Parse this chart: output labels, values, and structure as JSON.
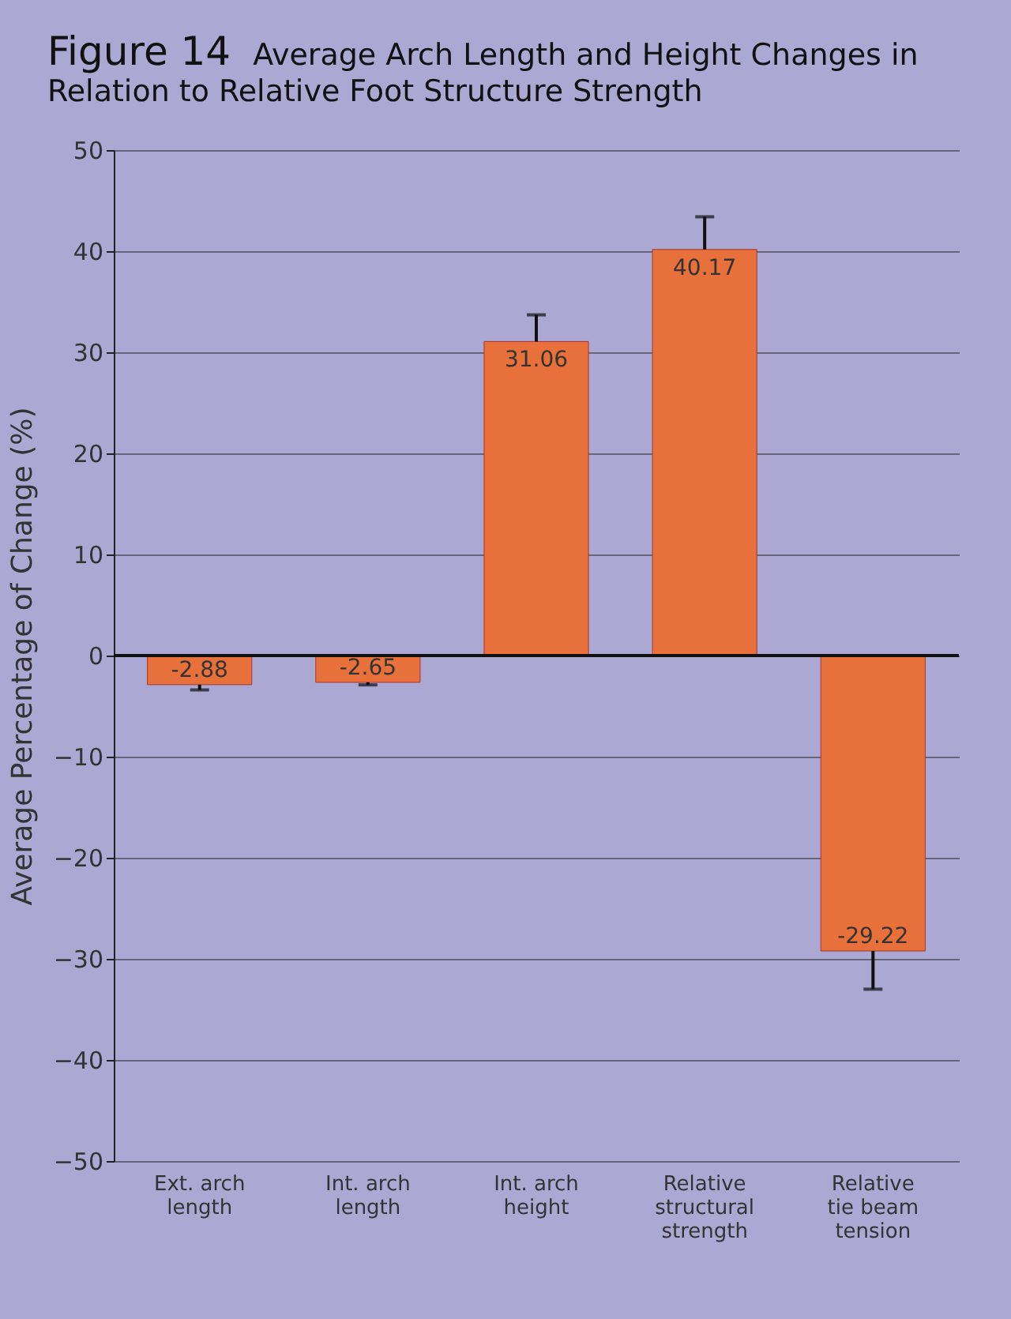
{
  "chart_data": {
    "type": "bar",
    "title": "Figure 14",
    "subtitle": "Average Arch Length and Height Changes in Relation to Relative Foot Structure Strength",
    "ylabel": "Average Percentage of Change (%)",
    "categories": [
      "Ext. arch length",
      "Int. arch length",
      "Int. arch height",
      "Relative structural strength",
      "Relative tie beam tension"
    ],
    "values": [
      -2.88,
      -2.65,
      31.06,
      40.17,
      -29.22
    ],
    "errors": [
      [
        -3.4,
        -2.88
      ],
      [
        -2.9,
        -2.65
      ],
      [
        31.06,
        33.7
      ],
      [
        40.17,
        43.4
      ],
      [
        -33,
        -29.22
      ]
    ],
    "color": "#e8703a",
    "ylim": [
      -50,
      50
    ],
    "yticks": [
      -50,
      -40,
      -30,
      -20,
      -10,
      0,
      10,
      20,
      30,
      40,
      50
    ],
    "grid": "y",
    "data_labels": true
  }
}
